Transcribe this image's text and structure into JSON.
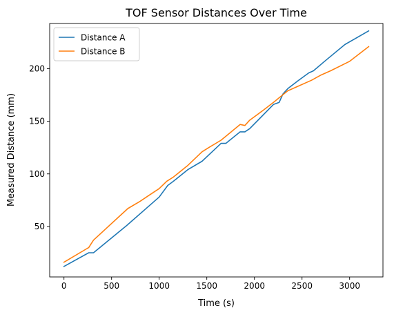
{
  "chart_data": {
    "type": "line",
    "title": "TOF Sensor Distances Over Time",
    "xlabel": "Time (s)",
    "ylabel": "Measured Distance (mm)",
    "xlim": [
      -150,
      3350
    ],
    "ylim": [
      2,
      243
    ],
    "xticks": [
      0,
      500,
      1000,
      1500,
      2000,
      2500,
      3000
    ],
    "yticks": [
      50,
      100,
      150,
      200
    ],
    "grid": false,
    "legend_position": "top-left",
    "series": [
      {
        "name": "Distance A",
        "color": "#1f77b4",
        "x": [
          0,
          260,
          310,
          660,
          1000,
          1090,
          1150,
          1300,
          1450,
          1520,
          1650,
          1700,
          1850,
          1900,
          1950,
          2200,
          2260,
          2300,
          2350,
          2450,
          2570,
          2620,
          2750,
          2950,
          3200
        ],
        "y": [
          12,
          25,
          25,
          51,
          78,
          89,
          93,
          104,
          112,
          118,
          129,
          129,
          140,
          140,
          143,
          166,
          168,
          176,
          181,
          188,
          196,
          198,
          208,
          223,
          236
        ]
      },
      {
        "name": "Distance B",
        "color": "#ff7f0e",
        "x": [
          0,
          260,
          310,
          670,
          800,
          900,
          1000,
          1080,
          1150,
          1300,
          1450,
          1520,
          1650,
          1850,
          1900,
          1950,
          2100,
          2200,
          2350,
          2450,
          2600,
          2700,
          2800,
          3000,
          3200
        ],
        "y": [
          16,
          30,
          37,
          67,
          74,
          80,
          86,
          93,
          97,
          108,
          121,
          125,
          132,
          147,
          146,
          151,
          161,
          168,
          179,
          183,
          189,
          194,
          198,
          207,
          221
        ]
      }
    ]
  }
}
